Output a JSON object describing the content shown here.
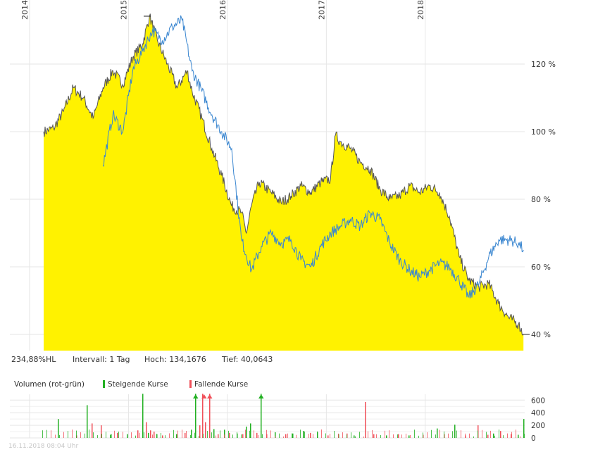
{
  "chart_data": [
    {
      "type": "area",
      "x_axis_years": [
        "2014",
        "2015",
        "2016",
        "2017",
        "2018"
      ],
      "y_ticks": [
        40,
        60,
        80,
        100,
        120
      ],
      "y_tick_labels": [
        "40 %",
        "60 %",
        "80 %",
        "100 %",
        "120 %"
      ],
      "ylim": [
        35,
        135
      ],
      "grid": true,
      "series": [
        {
          "color": "#fff200",
          "line_color": "#555555",
          "points": [
            [
              2014.0,
              100
            ],
            [
              2014.1,
              101
            ],
            [
              2014.2,
              106
            ],
            [
              2014.3,
              113
            ],
            [
              2014.4,
              110
            ],
            [
              2014.5,
              104
            ],
            [
              2014.6,
              113
            ],
            [
              2014.7,
              118
            ],
            [
              2014.8,
              114
            ],
            [
              2014.9,
              122
            ],
            [
              2015.0,
              126
            ],
            [
              2015.07,
              134.2
            ],
            [
              2015.15,
              127
            ],
            [
              2015.25,
              120
            ],
            [
              2015.35,
              113
            ],
            [
              2015.45,
              118
            ],
            [
              2015.5,
              112
            ],
            [
              2015.6,
              104
            ],
            [
              2015.7,
              95
            ],
            [
              2015.8,
              87
            ],
            [
              2015.9,
              78
            ],
            [
              2016.0,
              76
            ],
            [
              2016.05,
              70
            ],
            [
              2016.1,
              78
            ],
            [
              2016.18,
              85
            ],
            [
              2016.3,
              82
            ],
            [
              2016.4,
              79
            ],
            [
              2016.5,
              81
            ],
            [
              2016.6,
              84
            ],
            [
              2016.7,
              82
            ],
            [
              2016.8,
              85
            ],
            [
              2016.9,
              86
            ],
            [
              2016.95,
              99
            ],
            [
              2017.0,
              97
            ],
            [
              2017.1,
              95
            ],
            [
              2017.2,
              91
            ],
            [
              2017.3,
              89
            ],
            [
              2017.4,
              83
            ],
            [
              2017.5,
              80
            ],
            [
              2017.6,
              81
            ],
            [
              2017.7,
              84
            ],
            [
              2017.8,
              82
            ],
            [
              2017.9,
              84
            ],
            [
              2018.0,
              82
            ],
            [
              2018.1,
              75
            ],
            [
              2018.2,
              63
            ],
            [
              2018.3,
              56
            ],
            [
              2018.4,
              54
            ],
            [
              2018.5,
              55
            ],
            [
              2018.6,
              49
            ],
            [
              2018.7,
              45
            ],
            [
              2018.8,
              43
            ],
            [
              2018.85,
              40.1
            ]
          ]
        },
        {
          "color": "#3a86d0",
          "points": [
            [
              2014.6,
              90
            ],
            [
              2014.7,
              105
            ],
            [
              2014.8,
              100
            ],
            [
              2014.9,
              118
            ],
            [
              2015.0,
              124
            ],
            [
              2015.1,
              130
            ],
            [
              2015.2,
              127
            ],
            [
              2015.3,
              131
            ],
            [
              2015.4,
              133
            ],
            [
              2015.5,
              118
            ],
            [
              2015.6,
              112
            ],
            [
              2015.7,
              105
            ],
            [
              2015.8,
              100
            ],
            [
              2015.9,
              95
            ],
            [
              2016.0,
              68
            ],
            [
              2016.1,
              59
            ],
            [
              2016.2,
              66
            ],
            [
              2016.3,
              70
            ],
            [
              2016.4,
              67
            ],
            [
              2016.5,
              68
            ],
            [
              2016.6,
              62
            ],
            [
              2016.7,
              60
            ],
            [
              2016.8,
              66
            ],
            [
              2016.9,
              70
            ],
            [
              2017.0,
              72
            ],
            [
              2017.1,
              74
            ],
            [
              2017.2,
              72
            ],
            [
              2017.3,
              76
            ],
            [
              2017.4,
              74
            ],
            [
              2017.5,
              67
            ],
            [
              2017.6,
              62
            ],
            [
              2017.7,
              59
            ],
            [
              2017.8,
              57
            ],
            [
              2017.9,
              59
            ],
            [
              2018.0,
              61
            ],
            [
              2018.1,
              60
            ],
            [
              2018.2,
              56
            ],
            [
              2018.3,
              51
            ],
            [
              2018.4,
              55
            ],
            [
              2018.5,
              63
            ],
            [
              2018.6,
              68
            ],
            [
              2018.7,
              68
            ],
            [
              2018.8,
              67
            ],
            [
              2018.85,
              65
            ]
          ]
        }
      ],
      "last_marker_label": "40 %"
    },
    {
      "type": "bar",
      "title": "Volumen (rot-grün)",
      "legend": [
        {
          "label": "Steigende Kurse",
          "color": "#22b022"
        },
        {
          "label": "Fallende Kurse",
          "color": "#f0505a"
        }
      ],
      "y_ticks": [
        0,
        200,
        400,
        600
      ],
      "ylim": [
        0,
        700
      ]
    }
  ],
  "stats": {
    "range": "234,88%HL",
    "interval": "Intervall: 1 Tag",
    "high": "Hoch: 134,1676",
    "low": "Tief: 40,0643"
  },
  "timestamp": "16.11.2018 08:04 Uhr"
}
